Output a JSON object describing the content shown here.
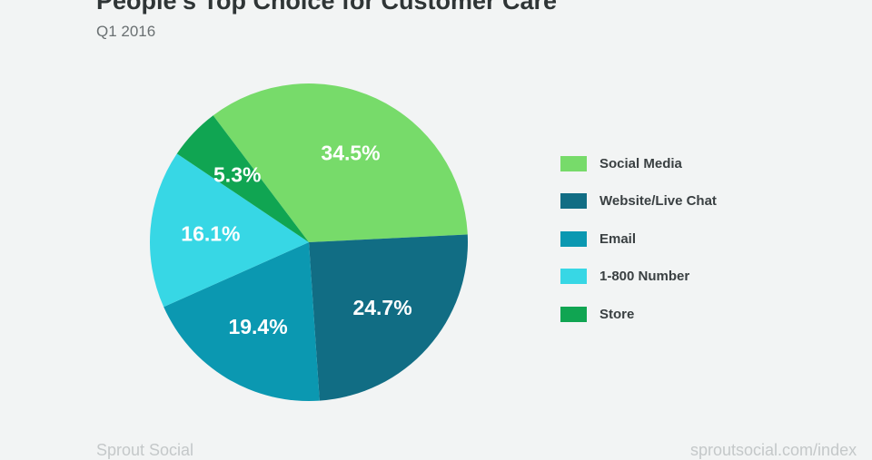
{
  "header": {
    "title": "People's Top Choice for Customer Care",
    "subtitle": "Q1 2016"
  },
  "chart_data": {
    "type": "pie",
    "title": "People's Top Choice for Customer Care",
    "subtitle": "Q1 2016",
    "legend_position": "right",
    "slices": [
      {
        "name": "Social Media",
        "value": 34.5,
        "label": "34.5%",
        "color": "#77db6a"
      },
      {
        "name": "Website/Live Chat",
        "value": 24.7,
        "label": "24.7%",
        "color": "#116d84"
      },
      {
        "name": "Email",
        "value": 19.4,
        "label": "19.4%",
        "color": "#0b98b1"
      },
      {
        "name": "1-800 Number",
        "value": 16.1,
        "label": "16.1%",
        "color": "#37d7e5"
      },
      {
        "name": "Store",
        "value": 5.3,
        "label": "5.3%",
        "color": "#10a552"
      }
    ]
  },
  "footer": {
    "left": "Sprout Social",
    "right": "sproutsocial.com/index"
  }
}
